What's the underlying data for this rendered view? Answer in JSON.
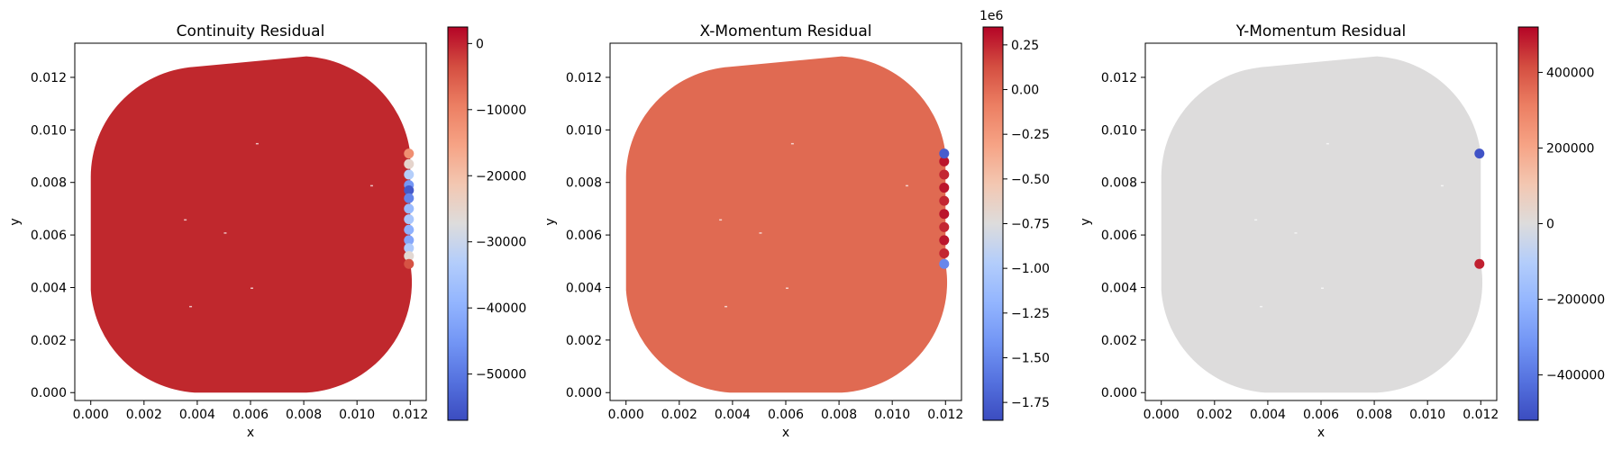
{
  "chart_data": [
    {
      "type": "scatter",
      "title": "Continuity Residual",
      "xlabel": "x",
      "ylabel": "y",
      "xlim": [
        -0.0006,
        0.0126
      ],
      "ylim": [
        -0.0003,
        0.0133
      ],
      "xticks": [
        "0.000",
        "0.002",
        "0.004",
        "0.006",
        "0.008",
        "0.010",
        "0.012"
      ],
      "yticks": [
        "0.000",
        "0.002",
        "0.004",
        "0.006",
        "0.008",
        "0.010",
        "0.012"
      ],
      "colormap": "coolwarm",
      "colorbar": {
        "min": -57000,
        "max": 2500,
        "offset_text": "",
        "ticks": [
          0,
          -10000,
          -20000,
          -30000,
          -40000,
          -50000
        ],
        "tick_labels": [
          "0",
          "−10000",
          "−20000",
          "−30000",
          "−40000",
          "−50000"
        ]
      },
      "domain_value": 0,
      "domain_color": "#c0282d",
      "boundary_points": [
        {
          "x": 0.01195,
          "y": 0.0091,
          "value": -12000
        },
        {
          "x": 0.01195,
          "y": 0.0087,
          "value": -25000
        },
        {
          "x": 0.01195,
          "y": 0.0083,
          "value": -33000
        },
        {
          "x": 0.01195,
          "y": 0.0079,
          "value": -45000
        },
        {
          "x": 0.01195,
          "y": 0.0077,
          "value": -55000
        },
        {
          "x": 0.01195,
          "y": 0.0074,
          "value": -48000
        },
        {
          "x": 0.01195,
          "y": 0.007,
          "value": -38000
        },
        {
          "x": 0.01195,
          "y": 0.0066,
          "value": -35000
        },
        {
          "x": 0.01195,
          "y": 0.0062,
          "value": -40000
        },
        {
          "x": 0.01195,
          "y": 0.0058,
          "value": -42000
        },
        {
          "x": 0.01195,
          "y": 0.0055,
          "value": -34000
        },
        {
          "x": 0.01195,
          "y": 0.0052,
          "value": -26000
        },
        {
          "x": 0.01195,
          "y": 0.0049,
          "value": -4000
        }
      ]
    },
    {
      "type": "scatter",
      "title": "X-Momentum Residual",
      "xlabel": "x",
      "ylabel": "y",
      "xlim": [
        -0.0006,
        0.0126
      ],
      "ylim": [
        -0.0003,
        0.0133
      ],
      "xticks": [
        "0.000",
        "0.002",
        "0.004",
        "0.006",
        "0.008",
        "0.010",
        "0.012"
      ],
      "yticks": [
        "0.000",
        "0.002",
        "0.004",
        "0.006",
        "0.008",
        "0.010",
        "0.012"
      ],
      "colormap": "coolwarm",
      "colorbar": {
        "min": -1.85,
        "max": 0.35,
        "offset_text": "1e6",
        "ticks": [
          0.25,
          0,
          -0.25,
          -0.5,
          -0.75,
          -1.0,
          -1.25,
          -1.5,
          -1.75
        ],
        "tick_labels": [
          "0.25",
          "0.00",
          "−0.25",
          "−0.50",
          "−0.75",
          "−1.00",
          "−1.25",
          "−1.50",
          "−1.75"
        ]
      },
      "domain_value": 0.05,
      "domain_color": "#e06a52",
      "boundary_points": [
        {
          "x": 0.01195,
          "y": 0.0088,
          "value": 0.3
        },
        {
          "x": 0.01195,
          "y": 0.0083,
          "value": 0.25
        },
        {
          "x": 0.01195,
          "y": 0.0078,
          "value": 0.3
        },
        {
          "x": 0.01195,
          "y": 0.0073,
          "value": 0.25
        },
        {
          "x": 0.01195,
          "y": 0.0068,
          "value": 0.3
        },
        {
          "x": 0.01195,
          "y": 0.0063,
          "value": 0.25
        },
        {
          "x": 0.01195,
          "y": 0.0058,
          "value": 0.3
        },
        {
          "x": 0.01195,
          "y": 0.0053,
          "value": 0.25
        },
        {
          "x": 0.01195,
          "y": 0.0091,
          "value": -1.75
        },
        {
          "x": 0.01195,
          "y": 0.0049,
          "value": -1.5
        }
      ]
    },
    {
      "type": "scatter",
      "title": "Y-Momentum Residual",
      "xlabel": "x",
      "ylabel": "y",
      "xlim": [
        -0.0006,
        0.0126
      ],
      "ylim": [
        -0.0003,
        0.0133
      ],
      "xticks": [
        "0.000",
        "0.002",
        "0.004",
        "0.006",
        "0.008",
        "0.010",
        "0.012"
      ],
      "yticks": [
        "0.000",
        "0.002",
        "0.004",
        "0.006",
        "0.008",
        "0.010",
        "0.012"
      ],
      "colormap": "coolwarm",
      "colorbar": {
        "min": -520000,
        "max": 520000,
        "offset_text": "",
        "ticks": [
          400000,
          200000,
          0,
          -200000,
          -400000
        ],
        "tick_labels": [
          "400000",
          "200000",
          "0",
          "−200000",
          "−400000"
        ]
      },
      "domain_value": 0,
      "domain_color": "#dddcdc",
      "boundary_points": [
        {
          "x": 0.01195,
          "y": 0.0091,
          "value": -500000
        },
        {
          "x": 0.01195,
          "y": 0.0049,
          "value": 480000
        }
      ]
    }
  ]
}
